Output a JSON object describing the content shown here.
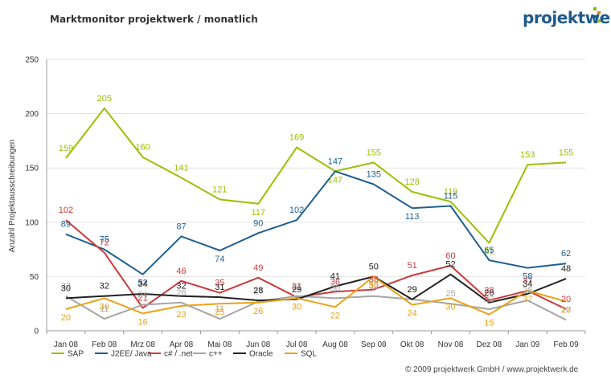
{
  "header": {
    "title": "Marktmonitor projektwerk / monatlich",
    "logo_text": "projektwerk",
    "logo_dot_colors": [
      "#8ab800",
      "#e88a00",
      "#1d5a8c",
      "#9ac000"
    ]
  },
  "footer": {
    "text": "© 2009 projektwerk GmbH / www.projektwerk.de"
  },
  "chart_data": {
    "type": "line",
    "title": "Marktmonitor projektwerk / monatlich",
    "xlabel": "",
    "ylabel": "Anzahl Projektausschreibungen",
    "ylim": [
      0,
      250
    ],
    "yticks": [
      "0",
      "50",
      "100",
      "150",
      "200",
      "250"
    ],
    "grid": true,
    "legend_position": "bottom",
    "categories": [
      "Jan 08",
      "Feb 08",
      "Mrz 08",
      "Apr 08",
      "Mai 08",
      "Jun 08",
      "Jul 08",
      "Aug 08",
      "Sep 08",
      "Okt 08",
      "Nov 08",
      "Dez 08",
      "Jan 09",
      "Feb 09"
    ],
    "series": [
      {
        "name": "SAP",
        "color": "#9ac000",
        "values": [
          159,
          205,
          160,
          141,
          121,
          117,
          169,
          147,
          155,
          128,
          119,
          81,
          153,
          155
        ]
      },
      {
        "name": "J2EE/ Java",
        "color": "#1f5f92",
        "values": [
          89,
          75,
          52,
          87,
          74,
          90,
          102,
          147,
          135,
          113,
          115,
          65,
          58,
          62
        ]
      },
      {
        "name": "c# / .net",
        "color": "#cc3a3a",
        "values": [
          102,
          72,
          21,
          46,
          35,
          49,
          31,
          36,
          38,
          51,
          60,
          28,
          37,
          20
        ]
      },
      {
        "name": "c++",
        "color": "#a5a5a5",
        "values": [
          32,
          11,
          24,
          26,
          11,
          27,
          32,
          30,
          32,
          29,
          25,
          20,
          28,
          10
        ]
      },
      {
        "name": "Oracle",
        "color": "#222222",
        "values": [
          30,
          32,
          34,
          32,
          31,
          28,
          29,
          41,
          50,
          29,
          52,
          26,
          34,
          48
        ]
      },
      {
        "name": "SQL",
        "color": "#e8a21a",
        "values": [
          20,
          30,
          16,
          23,
          25,
          26,
          30,
          22,
          50,
          24,
          30,
          15,
          37,
          27
        ]
      }
    ]
  }
}
